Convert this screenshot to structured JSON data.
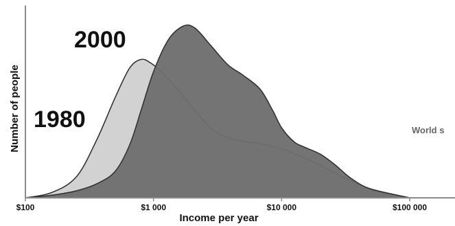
{
  "chart_data": {
    "type": "area",
    "xlabel": "Income per year",
    "ylabel": "Number of people",
    "x_scale": "log",
    "xlim": [
      100,
      100000
    ],
    "x_ticks": [
      100,
      1000,
      10000,
      100000
    ],
    "x_tick_labels": [
      "$100",
      "$1 000",
      "$10 000",
      "$100 000"
    ],
    "grid": false,
    "annotation": "World s",
    "series": [
      {
        "name": "1980",
        "color": "#d2d2d2",
        "x": [
          100,
          160,
          250,
          360,
          500,
          650,
          800,
          950,
          1150,
          1500,
          2100,
          3000,
          4500,
          6800,
          10000,
          15000,
          22000,
          32000,
          50000,
          100000
        ],
        "y": [
          0,
          0.03,
          0.12,
          0.33,
          0.57,
          0.74,
          0.79,
          0.77,
          0.72,
          0.63,
          0.5,
          0.38,
          0.33,
          0.31,
          0.28,
          0.23,
          0.17,
          0.11,
          0.05,
          0
        ]
      },
      {
        "name": "2000",
        "color": "#6e6e6e",
        "x": [
          100,
          160,
          250,
          360,
          500,
          650,
          800,
          1000,
          1300,
          1700,
          2100,
          2800,
          3800,
          5000,
          6800,
          8500,
          10000,
          12500,
          15000,
          20000,
          26000,
          35000,
          50000,
          100000
        ],
        "y": [
          0,
          0.015,
          0.04,
          0.08,
          0.15,
          0.3,
          0.5,
          0.72,
          0.9,
          0.98,
          0.97,
          0.87,
          0.76,
          0.7,
          0.62,
          0.5,
          0.4,
          0.32,
          0.29,
          0.25,
          0.19,
          0.11,
          0.05,
          0
        ]
      }
    ]
  }
}
